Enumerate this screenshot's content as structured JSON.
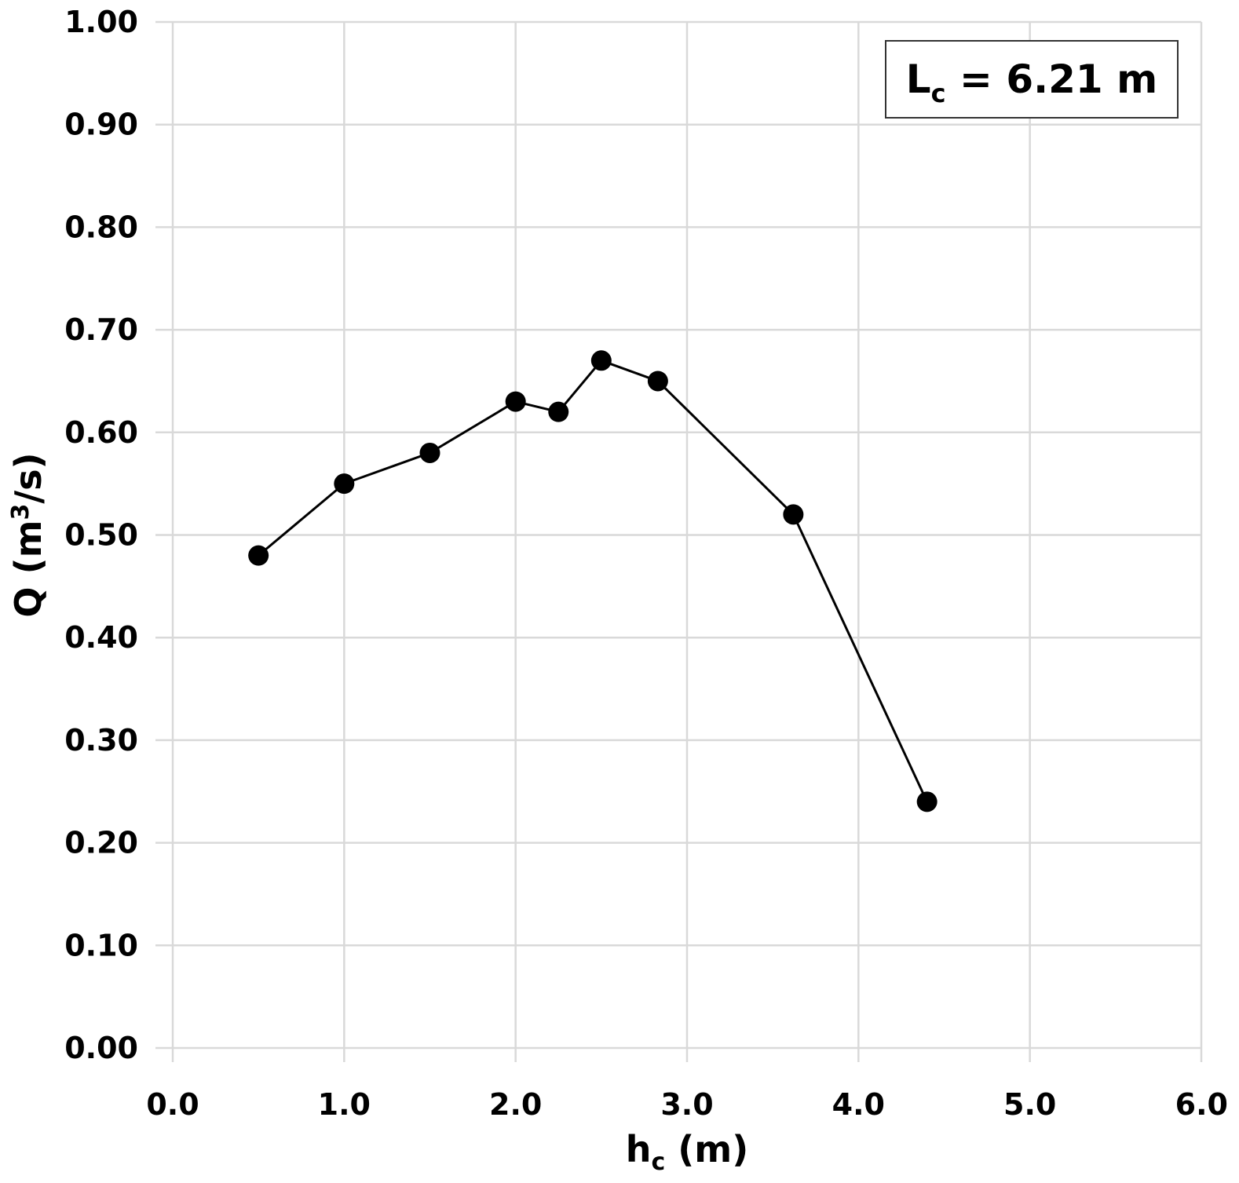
{
  "chart_data": {
    "type": "line",
    "x_axis": {
      "label_main": "h",
      "label_sub": "c",
      "label_rest": " (m)",
      "range": [
        0,
        6
      ],
      "ticks": [
        "0.0",
        "1.0",
        "2.0",
        "3.0",
        "4.0",
        "5.0",
        "6.0"
      ],
      "tick_values": [
        0,
        1,
        2,
        3,
        4,
        5,
        6
      ]
    },
    "y_axis": {
      "label_main": "Q (m",
      "label_sup": "3",
      "label_rest": "/s)",
      "range": [
        0,
        1
      ],
      "ticks": [
        "0.00",
        "0.10",
        "0.20",
        "0.30",
        "0.40",
        "0.50",
        "0.60",
        "0.70",
        "0.80",
        "0.90",
        "1.00"
      ],
      "tick_values": [
        0,
        0.1,
        0.2,
        0.3,
        0.4,
        0.5,
        0.6,
        0.7,
        0.8,
        0.9,
        1.0
      ]
    },
    "grid": true,
    "annotation": {
      "main": "L",
      "sub": "c",
      "rest": " = 6.21 m",
      "placement": "top-right"
    },
    "series": [
      {
        "points": [
          {
            "x": 0.5,
            "y": 0.48
          },
          {
            "x": 1.0,
            "y": 0.55
          },
          {
            "x": 1.5,
            "y": 0.58
          },
          {
            "x": 2.0,
            "y": 0.63
          },
          {
            "x": 2.25,
            "y": 0.62
          },
          {
            "x": 2.5,
            "y": 0.67
          },
          {
            "x": 2.83,
            "y": 0.65
          },
          {
            "x": 3.62,
            "y": 0.52
          },
          {
            "x": 4.4,
            "y": 0.24
          }
        ],
        "color": "#000000",
        "marker": "circle"
      }
    ]
  }
}
